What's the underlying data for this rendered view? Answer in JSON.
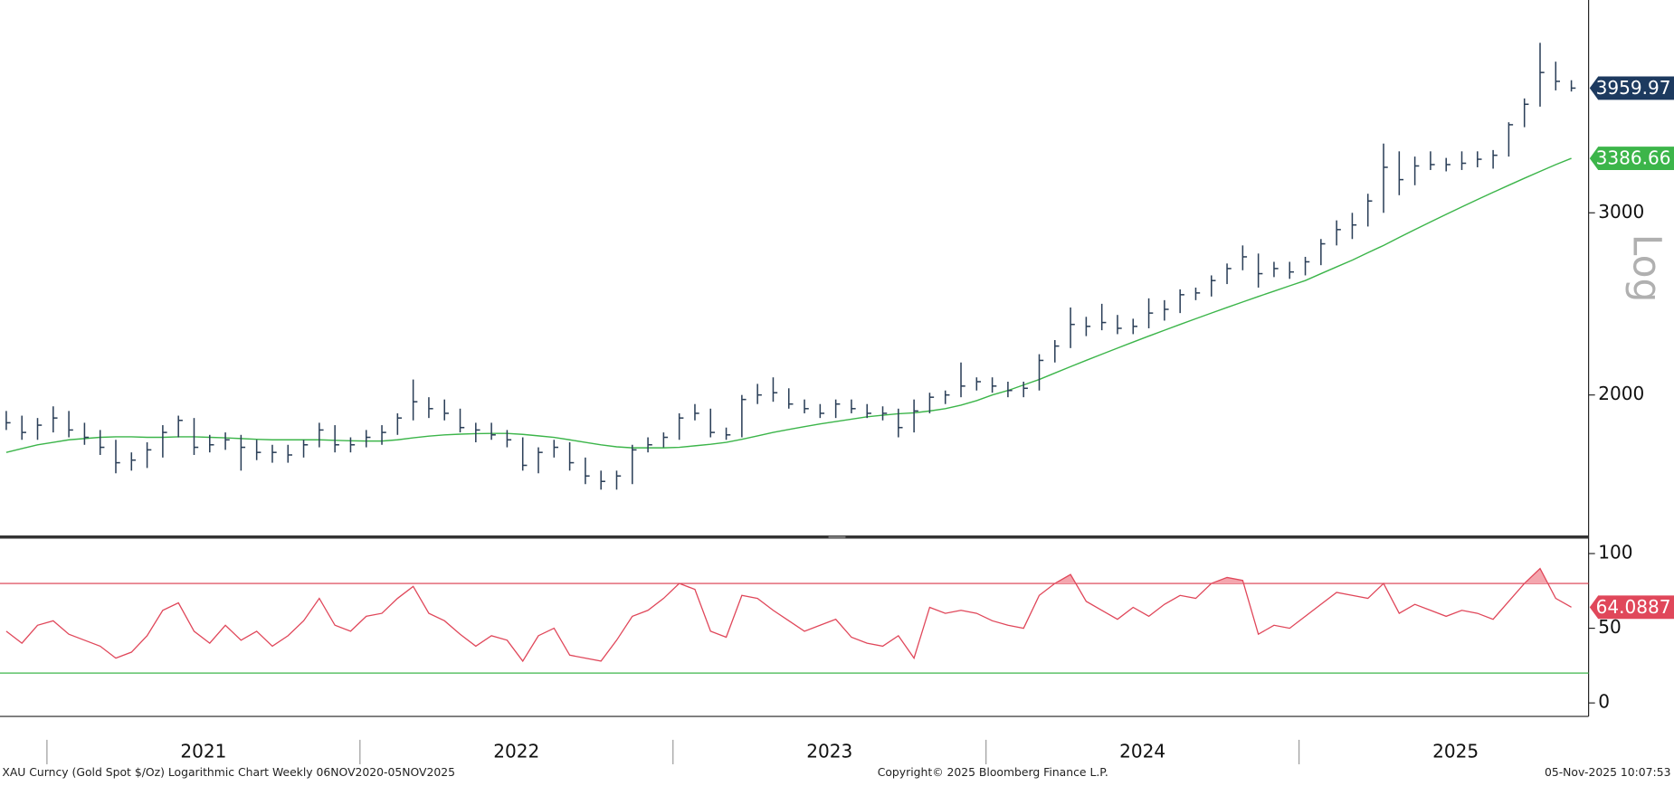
{
  "chart_data": [
    {
      "type": "ohlc",
      "scale": "log",
      "x": [
        2020.87,
        2020.92,
        2020.97,
        2021.02,
        2021.07,
        2021.12,
        2021.17,
        2021.22,
        2021.27,
        2021.32,
        2021.37,
        2021.42,
        2021.47,
        2021.52,
        2021.57,
        2021.62,
        2021.67,
        2021.72,
        2021.77,
        2021.82,
        2021.87,
        2021.92,
        2021.97,
        2022.02,
        2022.07,
        2022.12,
        2022.17,
        2022.22,
        2022.27,
        2022.32,
        2022.37,
        2022.42,
        2022.47,
        2022.52,
        2022.57,
        2022.62,
        2022.67,
        2022.72,
        2022.77,
        2022.82,
        2022.87,
        2022.92,
        2022.97,
        2023.02,
        2023.07,
        2023.12,
        2023.17,
        2023.22,
        2023.27,
        2023.32,
        2023.37,
        2023.42,
        2023.47,
        2023.52,
        2023.57,
        2023.62,
        2023.67,
        2023.72,
        2023.77,
        2023.82,
        2023.87,
        2023.92,
        2023.97,
        2024.02,
        2024.07,
        2024.12,
        2024.17,
        2024.22,
        2024.27,
        2024.32,
        2024.37,
        2024.42,
        2024.47,
        2024.52,
        2024.57,
        2024.62,
        2024.67,
        2024.72,
        2024.77,
        2024.82,
        2024.87,
        2024.92,
        2024.97,
        2025.02,
        2025.07,
        2025.12,
        2025.17,
        2025.22,
        2025.27,
        2025.32,
        2025.37,
        2025.42,
        2025.47,
        2025.52,
        2025.57,
        2025.62,
        2025.67,
        2025.72,
        2025.77,
        2025.82,
        2025.87
      ],
      "high": [
        1930,
        1910,
        1900,
        1950,
        1930,
        1880,
        1850,
        1810,
        1760,
        1800,
        1870,
        1910,
        1900,
        1830,
        1840,
        1830,
        1810,
        1790,
        1790,
        1810,
        1880,
        1870,
        1820,
        1850,
        1870,
        1920,
        2070,
        1990,
        1980,
        1940,
        1880,
        1880,
        1850,
        1820,
        1780,
        1810,
        1800,
        1740,
        1690,
        1690,
        1790,
        1820,
        1840,
        1920,
        1960,
        1940,
        1860,
        2000,
        2050,
        2080,
        2030,
        1980,
        1960,
        1980,
        1980,
        1960,
        1950,
        1940,
        1980,
        2010,
        2020,
        2150,
        2080,
        2080,
        2060,
        2060,
        2190,
        2260,
        2430,
        2380,
        2450,
        2390,
        2370,
        2480,
        2470,
        2530,
        2540,
        2610,
        2680,
        2790,
        2740,
        2690,
        2690,
        2720,
        2830,
        2950,
        3000,
        3130,
        3500,
        3440,
        3400,
        3440,
        3390,
        3440,
        3440,
        3450,
        3670,
        3870,
        4380,
        4200,
        4030
      ],
      "low": [
        1850,
        1810,
        1810,
        1840,
        1820,
        1790,
        1750,
        1680,
        1690,
        1700,
        1740,
        1820,
        1750,
        1760,
        1770,
        1690,
        1730,
        1720,
        1720,
        1740,
        1780,
        1760,
        1760,
        1780,
        1790,
        1830,
        1890,
        1900,
        1890,
        1840,
        1800,
        1810,
        1780,
        1690,
        1680,
        1740,
        1690,
        1640,
        1620,
        1620,
        1640,
        1760,
        1780,
        1810,
        1890,
        1820,
        1810,
        1820,
        1960,
        1970,
        1940,
        1920,
        1900,
        1900,
        1920,
        1900,
        1890,
        1820,
        1840,
        1920,
        1960,
        1990,
        2020,
        2010,
        1990,
        1990,
        2020,
        2150,
        2220,
        2280,
        2310,
        2290,
        2290,
        2320,
        2360,
        2400,
        2470,
        2490,
        2560,
        2640,
        2540,
        2600,
        2590,
        2610,
        2670,
        2790,
        2830,
        2910,
        3000,
        3120,
        3190,
        3300,
        3290,
        3300,
        3320,
        3310,
        3400,
        3630,
        3800,
        3940,
        3930
      ],
      "close": [
        1880,
        1840,
        1870,
        1900,
        1850,
        1820,
        1780,
        1720,
        1730,
        1770,
        1840,
        1890,
        1780,
        1790,
        1810,
        1780,
        1760,
        1760,
        1750,
        1790,
        1850,
        1790,
        1790,
        1820,
        1840,
        1900,
        1970,
        1940,
        1920,
        1860,
        1850,
        1830,
        1810,
        1710,
        1760,
        1780,
        1720,
        1670,
        1650,
        1670,
        1770,
        1790,
        1820,
        1900,
        1920,
        1840,
        1830,
        1980,
        2000,
        2010,
        1960,
        1940,
        1920,
        1960,
        1940,
        1920,
        1920,
        1860,
        1930,
        1990,
        2000,
        2040,
        2060,
        2040,
        2020,
        2030,
        2160,
        2230,
        2340,
        2330,
        2350,
        2320,
        2330,
        2400,
        2420,
        2500,
        2510,
        2580,
        2650,
        2720,
        2620,
        2650,
        2630,
        2690,
        2800,
        2890,
        2920,
        3080,
        3320,
        3230,
        3330,
        3340,
        3340,
        3350,
        3380,
        3410,
        3650,
        3820,
        4100,
        4020,
        3959.97
      ],
      "bar_color": "#2b3f58",
      "tag_color": "#1d3a5f",
      "ma": [
        1760,
        1775,
        1790,
        1800,
        1810,
        1815,
        1820,
        1822,
        1822,
        1820,
        1820,
        1822,
        1822,
        1820,
        1818,
        1815,
        1812,
        1810,
        1810,
        1810,
        1810,
        1808,
        1806,
        1805,
        1805,
        1810,
        1818,
        1825,
        1830,
        1833,
        1835,
        1836,
        1836,
        1832,
        1826,
        1820,
        1810,
        1800,
        1790,
        1782,
        1778,
        1778,
        1778,
        1780,
        1786,
        1792,
        1800,
        1812,
        1826,
        1840,
        1852,
        1864,
        1875,
        1885,
        1895,
        1905,
        1912,
        1918,
        1922,
        1930,
        1940,
        1955,
        1975,
        2000,
        2020,
        2045,
        2070,
        2100,
        2130,
        2160,
        2190,
        2220,
        2250,
        2280,
        2310,
        2340,
        2370,
        2400,
        2430,
        2460,
        2490,
        2520,
        2550,
        2580,
        2620,
        2660,
        2700,
        2745,
        2790,
        2840,
        2890,
        2940,
        2990,
        3040,
        3090,
        3140,
        3190,
        3240,
        3290,
        3340,
        3386.66
      ],
      "ma_color": "#3cb54a",
      "ylim": [
        1463,
        4818
      ],
      "yticks": [
        2000,
        3000
      ],
      "xlim": [
        2020.85,
        2025.925
      ],
      "axis_note": "Log"
    },
    {
      "type": "line",
      "x": [
        2020.87,
        2020.92,
        2020.97,
        2021.02,
        2021.07,
        2021.12,
        2021.17,
        2021.22,
        2021.27,
        2021.32,
        2021.37,
        2021.42,
        2021.47,
        2021.52,
        2021.57,
        2021.62,
        2021.67,
        2021.72,
        2021.77,
        2021.82,
        2021.87,
        2021.92,
        2021.97,
        2022.02,
        2022.07,
        2022.12,
        2022.17,
        2022.22,
        2022.27,
        2022.32,
        2022.37,
        2022.42,
        2022.47,
        2022.52,
        2022.57,
        2022.62,
        2022.67,
        2022.72,
        2022.77,
        2022.82,
        2022.87,
        2022.92,
        2022.97,
        2023.02,
        2023.07,
        2023.12,
        2023.17,
        2023.22,
        2023.27,
        2023.32,
        2023.37,
        2023.42,
        2023.47,
        2023.52,
        2023.57,
        2023.62,
        2023.67,
        2023.72,
        2023.77,
        2023.82,
        2023.87,
        2023.92,
        2023.97,
        2024.02,
        2024.07,
        2024.12,
        2024.17,
        2024.22,
        2024.27,
        2024.32,
        2024.37,
        2024.42,
        2024.47,
        2024.52,
        2024.57,
        2024.62,
        2024.67,
        2024.72,
        2024.77,
        2024.82,
        2024.87,
        2024.92,
        2024.97,
        2025.02,
        2025.07,
        2025.12,
        2025.17,
        2025.22,
        2025.27,
        2025.32,
        2025.37,
        2025.42,
        2025.47,
        2025.52,
        2025.57,
        2025.62,
        2025.67,
        2025.72,
        2025.77,
        2025.82,
        2025.87
      ],
      "values": [
        48,
        40,
        52,
        55,
        46,
        42,
        38,
        30,
        34,
        45,
        62,
        67,
        48,
        40,
        52,
        42,
        48,
        38,
        45,
        55,
        70,
        52,
        48,
        58,
        60,
        70,
        78,
        60,
        55,
        46,
        38,
        45,
        42,
        28,
        45,
        50,
        32,
        30,
        28,
        42,
        58,
        62,
        70,
        80,
        76,
        48,
        44,
        72,
        70,
        62,
        55,
        48,
        52,
        56,
        44,
        40,
        38,
        45,
        30,
        64,
        60,
        62,
        60,
        55,
        52,
        50,
        72,
        80,
        86,
        68,
        62,
        56,
        64,
        58,
        66,
        72,
        70,
        80,
        84,
        82,
        46,
        52,
        50,
        58,
        66,
        74,
        72,
        70,
        80,
        60,
        66,
        62,
        58,
        62,
        60,
        56,
        68,
        80,
        90,
        70,
        64.0887
      ],
      "color": "#e0475a",
      "fill_color": "#f4a6ae",
      "thresholds": [
        {
          "value": 80,
          "color": "#d9384a"
        },
        {
          "value": 20,
          "color": "#3cb54a"
        }
      ],
      "ylim": [
        -9,
        110
      ],
      "yticks": [
        0,
        50,
        100
      ],
      "xlim": [
        2020.85,
        2025.925
      ],
      "xticks": [
        2021,
        2022,
        2023,
        2024,
        2025
      ]
    }
  ],
  "footer": {
    "left": "XAU Curncy (Gold Spot  $/Oz) Logarithmic Chart Weekly 06NOV2020-05NOV2025",
    "center": "Copyright© 2025 Bloomberg Finance L.P.",
    "right": "05-Nov-2025 10:07:53"
  }
}
